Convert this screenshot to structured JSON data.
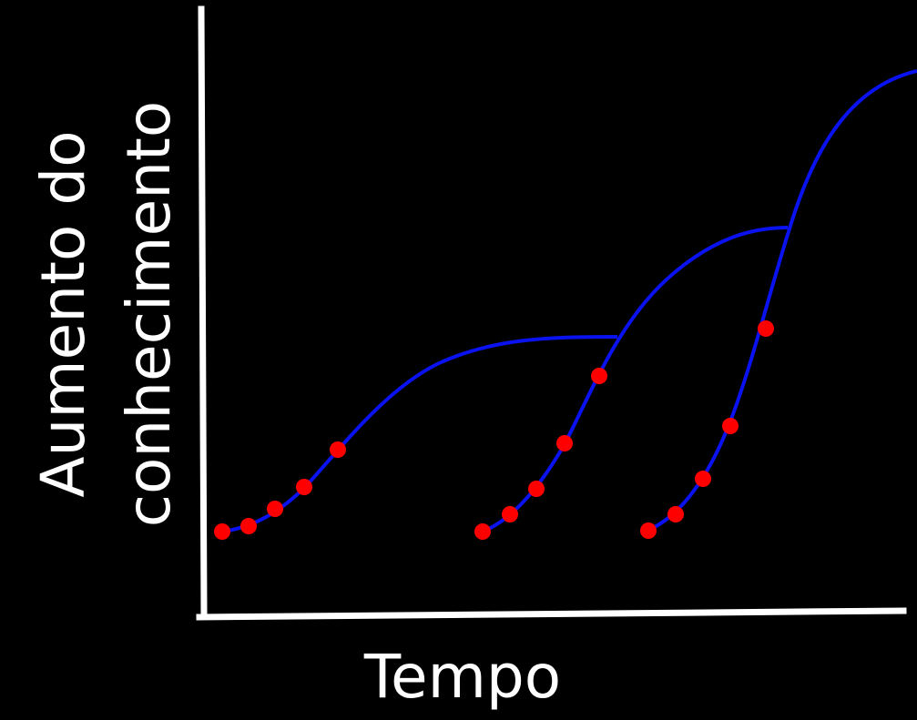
{
  "diagram": {
    "ylabel_line1": "Aumento do",
    "ylabel_line2": "conhecimento",
    "xlabel": "Tempo"
  },
  "colors": {
    "background": "#000000",
    "axes": "#ffffff",
    "curve": "#0a12f0",
    "point": "#ff0000",
    "text": "#ffffff"
  },
  "curves": [
    {
      "name": "curve-1",
      "points": 5
    },
    {
      "name": "curve-2",
      "points": 5
    },
    {
      "name": "curve-3",
      "points": 5
    }
  ]
}
